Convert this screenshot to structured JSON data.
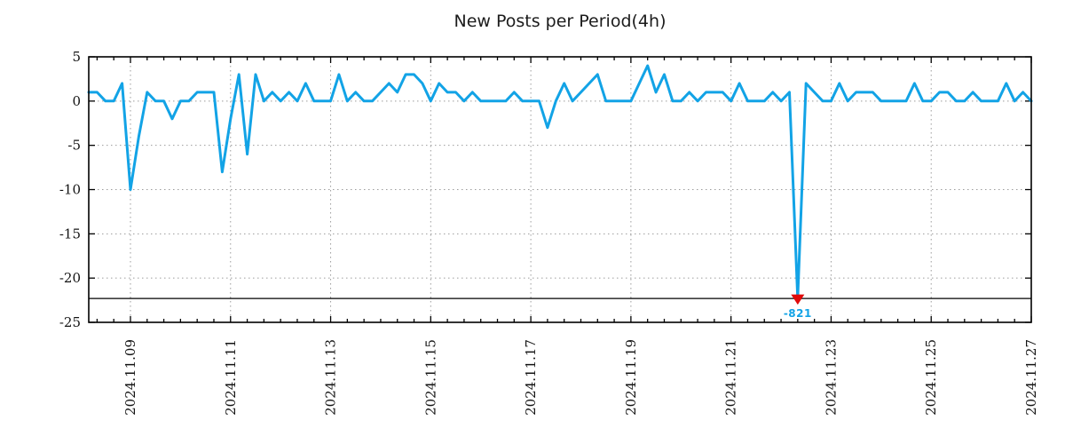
{
  "chart_data": {
    "type": "line",
    "title": "New Posts per Period(4h)",
    "x_start": "2024-11-08 04:00",
    "x_step_hours": 4,
    "x_tick_labels": [
      "2024.11.09",
      "2024.11.11",
      "2024.11.13",
      "2024.11.15",
      "2024.11.17",
      "2024.11.19",
      "2024.11.21",
      "2024.11.23",
      "2024.11.25",
      "2024.11.27"
    ],
    "x_tick_indices": [
      5,
      17,
      29,
      41,
      53,
      65,
      77,
      89,
      101,
      113
    ],
    "y_ticks": [
      5,
      0,
      -5,
      -10,
      -15,
      -20,
      -25
    ],
    "ylim": [
      -25,
      5
    ],
    "grid": true,
    "legend": false,
    "clip_line_value": -22.3,
    "values": [
      1,
      1,
      0,
      0,
      2,
      -10,
      -4,
      1,
      0,
      0,
      -2,
      0,
      0,
      1,
      1,
      1,
      -8,
      -2,
      3,
      -6,
      3,
      0,
      1,
      0,
      1,
      0,
      2,
      0,
      0,
      0,
      3,
      0,
      1,
      0,
      0,
      1,
      2,
      1,
      3,
      3,
      2,
      0,
      2,
      1,
      1,
      0,
      1,
      0,
      0,
      0,
      0,
      1,
      0,
      0,
      0,
      -3,
      0,
      2,
      0,
      1,
      2,
      3,
      0,
      0,
      0,
      0,
      2,
      4,
      1,
      3,
      0,
      0,
      1,
      0,
      1,
      1,
      1,
      0,
      2,
      0,
      0,
      0,
      1,
      0,
      1,
      -821,
      2,
      1,
      0,
      0,
      2,
      0,
      1,
      1,
      1,
      0,
      0,
      0,
      0,
      2,
      0,
      0,
      1,
      1,
      0,
      0,
      1,
      0,
      0,
      0,
      2,
      0,
      1,
      0
    ],
    "min_annotation": {
      "index": 85,
      "value": -821,
      "label": "-821"
    }
  },
  "colors": {
    "line": "#12a3e6",
    "marker": "#e00b0b",
    "annotation_text": "#12a3e6",
    "grid": "#9c9c9c",
    "border": "#000000"
  }
}
